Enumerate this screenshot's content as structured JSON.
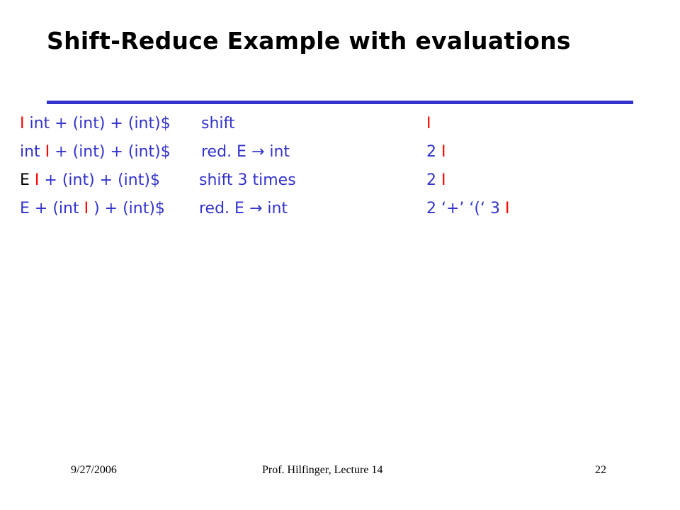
{
  "slide": {
    "title": "Shift-Reduce Example with evaluations",
    "accent_color": "#3333cc",
    "cursor_color": "#ff0000",
    "rows": [
      {
        "input_parts": [
          {
            "text": "I",
            "color": "red"
          },
          {
            "text": " int + (int) + (int)$",
            "color": "blue"
          }
        ],
        "action": "shift",
        "stack_parts": [
          {
            "text": "I",
            "color": "red"
          }
        ]
      },
      {
        "input_parts": [
          {
            "text": "int ",
            "color": "blue"
          },
          {
            "text": "I",
            "color": "red"
          },
          {
            "text": " + (int) + (int)$",
            "color": "blue"
          }
        ],
        "action": "red. E → int",
        "stack_parts": [
          {
            "text": "2 ",
            "color": "blue"
          },
          {
            "text": "I",
            "color": "red"
          }
        ]
      },
      {
        "input_parts": [
          {
            "text": "E ",
            "color": "black"
          },
          {
            "text": "I",
            "color": "red"
          },
          {
            "text": " + (int) + (int)$",
            "color": "blue"
          }
        ],
        "action": "shift 3 times",
        "stack_parts": [
          {
            "text": "2 ",
            "color": "blue"
          },
          {
            "text": "I",
            "color": "red"
          }
        ]
      },
      {
        "input_parts": [
          {
            "text": "E + (int ",
            "color": "blue"
          },
          {
            "text": "I",
            "color": "red"
          },
          {
            "text": " ) + (int)$",
            "color": "blue"
          }
        ],
        "action": "red. E → int",
        "stack_parts": [
          {
            "text": "2 ‘+’ ‘(‘ 3 ",
            "color": "blue"
          },
          {
            "text": "I",
            "color": "red"
          }
        ]
      }
    ]
  },
  "footer": {
    "date": "9/27/2006",
    "author": "Prof. Hilfinger, Lecture 14",
    "page": "22"
  }
}
